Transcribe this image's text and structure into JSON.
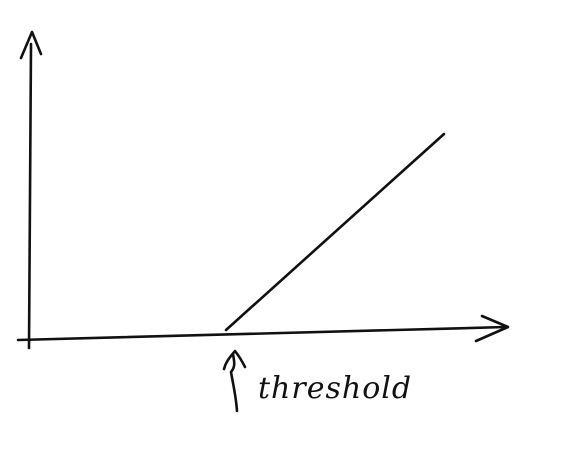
{
  "diagram": {
    "annotation_label": "threshold",
    "ink_color": "#111111",
    "background_color": "#ffffff"
  }
}
